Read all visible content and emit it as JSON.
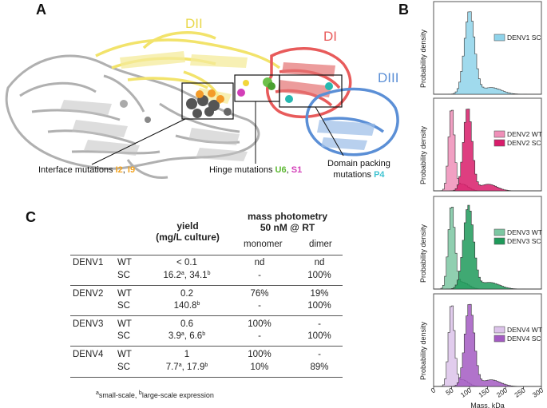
{
  "panels": {
    "a": "A",
    "b": "B",
    "c": "C"
  },
  "domains": {
    "dii": "DII",
    "di": "DI",
    "diii": "DIII"
  },
  "colors": {
    "dii": "#f2e36b",
    "di": "#e85b5b",
    "diii": "#5b8fd6",
    "gray": "#9a9a9a"
  },
  "annotations": {
    "interface": {
      "prefix": "Interface mutations ",
      "i2": "I2",
      "sep": ", ",
      "i9": "I9"
    },
    "hinge": {
      "prefix": "Hinge mutations ",
      "u6": "U6",
      "sep": ", ",
      "s1": "S1"
    },
    "domain": {
      "line1": "Domain packing",
      "line2": "mutations ",
      "p4": "P4"
    }
  },
  "table": {
    "yield_header_1": "yield",
    "yield_header_2": "(mg/L culture)",
    "mp_header_1": "mass photometry",
    "mp_header_2": "50 nM @ RT",
    "monomer": "monomer",
    "dimer": "dimer",
    "rows": [
      {
        "serotype": "DENV1",
        "wt": {
          "label": "WT",
          "yield": "< 0.1",
          "monomer": "nd",
          "dimer": "nd"
        },
        "sc": {
          "label": "SC",
          "yield_a": "16.2",
          "yield_b": "34.1",
          "monomer": "-",
          "dimer": "100%"
        }
      },
      {
        "serotype": "DENV2",
        "wt": {
          "label": "WT",
          "yield": "0.2",
          "monomer": "76%",
          "dimer": "19%"
        },
        "sc": {
          "label": "SC",
          "yield_b": "140.8",
          "monomer": "-",
          "dimer": "100%"
        }
      },
      {
        "serotype": "DENV3",
        "wt": {
          "label": "WT",
          "yield": "0.6",
          "monomer": "100%",
          "dimer": "-"
        },
        "sc": {
          "label": "SC",
          "yield_a": "3.9",
          "yield_b": "6.6",
          "monomer": "-",
          "dimer": "100%"
        }
      },
      {
        "serotype": "DENV4",
        "wt": {
          "label": "WT",
          "yield": "1",
          "monomer": "100%",
          "dimer": "-"
        },
        "sc": {
          "label": "SC",
          "yield_a": "7.7",
          "yield_b": "17.9",
          "monomer": "10%",
          "dimer": "89%"
        }
      }
    ],
    "sup_a": "a",
    "sup_b": "b",
    "footnote_a": "small-scale, ",
    "footnote_b": "large-scale expression"
  },
  "chart_data": {
    "type": "histogram",
    "xlabel": "Mass, kDa",
    "ylabel": "Probability density",
    "xlim": [
      0,
      300
    ],
    "xticks": [
      "0",
      "50",
      "100",
      "150",
      "200",
      "250",
      "300"
    ],
    "panels": [
      {
        "series": [
          {
            "name": "DENV1 SC",
            "color": "#8fd3ea",
            "peak": 100,
            "width": 14
          }
        ]
      },
      {
        "series": [
          {
            "name": "DENV2 WT",
            "color": "#ef8fb8",
            "peak": 50,
            "width": 8
          },
          {
            "name": "DENV2 SC",
            "color": "#d81c6a",
            "peak": 95,
            "width": 12
          }
        ]
      },
      {
        "series": [
          {
            "name": "DENV3 WT",
            "color": "#7cc7a2",
            "peak": 50,
            "width": 9
          },
          {
            "name": "DENV3 SC",
            "color": "#1f9a5a",
            "peak": 97,
            "width": 14
          }
        ]
      },
      {
        "series": [
          {
            "name": "DENV4 WT",
            "color": "#dcc3ea",
            "peak": 50,
            "width": 8
          },
          {
            "name": "DENV4 SC",
            "color": "#a35bc2",
            "peak": 100,
            "width": 13
          }
        ]
      }
    ]
  }
}
